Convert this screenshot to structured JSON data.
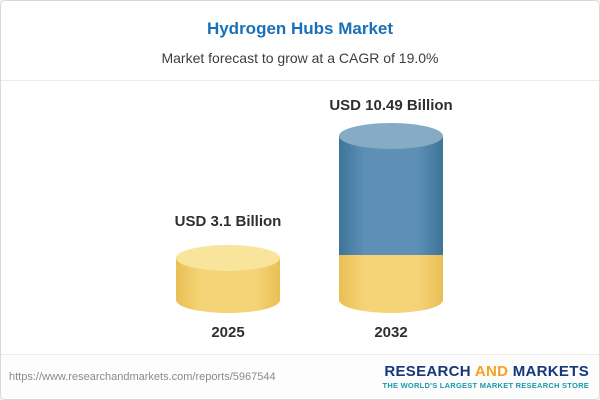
{
  "header": {
    "title": "Hydrogen Hubs Market",
    "subtitle": "Market forecast to grow at a CAGR of 19.0%"
  },
  "chart_data": {
    "type": "bar",
    "title": "Hydrogen Hubs Market",
    "subtitle": "Market forecast to grow at a CAGR of 19.0%",
    "categories": [
      "2025",
      "2032"
    ],
    "values": [
      3.1,
      10.49
    ],
    "value_labels": [
      "USD 3.1 Billion",
      "USD 10.49 Billion"
    ],
    "unit": "USD Billion",
    "cagr_pct": 19.0,
    "ylim": [
      0,
      12
    ],
    "grid": false,
    "legend": "none",
    "colors": {
      "bar_2025": "#F5D478",
      "bar_2025_cap": "#F9E49C",
      "bar_2032_top": "#5D90B4",
      "bar_2032_cap": "#85ACC4",
      "bar_2032_base": "#F5D478",
      "title_text": "#1A70B8"
    }
  },
  "footer": {
    "url": "https://www.researchandmarkets.com/reports/5967544",
    "logo": {
      "word1": "RESEARCH",
      "word2": "AND",
      "word3": "MARKETS",
      "tagline": "THE WORLD'S LARGEST MARKET RESEARCH STORE"
    }
  }
}
